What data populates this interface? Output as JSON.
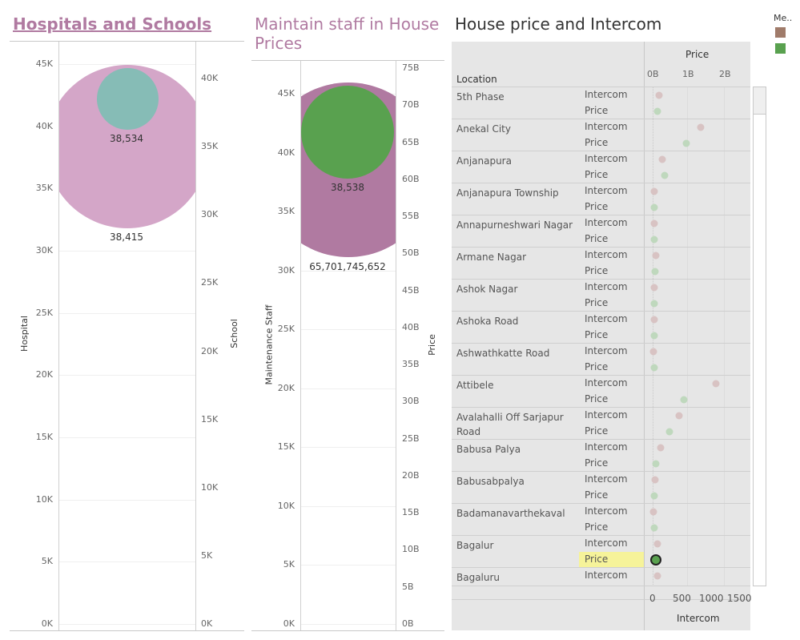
{
  "colors": {
    "pink": "#d4a6c8",
    "teal": "#86bcb6",
    "purple": "#b07aa1",
    "green": "#59a14f",
    "legend_brown": "#a07b6a",
    "dot_pink": "#d8c3c3",
    "dot_green": "#bfd8bd",
    "highlight": "#f6f39a"
  },
  "dashboard": {
    "title1": "Hospitals and Schools",
    "title2": "Maintain staff in House Prices",
    "title3": "House price and Intercom",
    "legend_title": "Me.."
  },
  "chart_data": [
    {
      "type": "bubble",
      "title": "Hospitals and Schools",
      "y_left_label": "Hospital",
      "y_left_ticks": [
        "45K",
        "40K",
        "35K",
        "30K",
        "25K",
        "20K",
        "15K",
        "10K",
        "5K",
        "0K"
      ],
      "y_right_label": "School",
      "y_right_ticks": [
        "40K",
        "35K",
        "30K",
        "25K",
        "20K",
        "15K",
        "10K",
        "5K",
        "0K"
      ],
      "series": [
        {
          "name": "Hospital",
          "value": 38415,
          "label": "38,415",
          "color": "#d4a6c8"
        },
        {
          "name": "School",
          "value": 38534,
          "label": "38,534",
          "color": "#86bcb6"
        }
      ]
    },
    {
      "type": "bubble",
      "title": "Maintain staff in House Prices",
      "y_left_label": "Maintenance Staff",
      "y_left_ticks": [
        "45K",
        "40K",
        "35K",
        "30K",
        "25K",
        "20K",
        "15K",
        "10K",
        "5K",
        "0K"
      ],
      "y_right_label": "Price",
      "y_right_ticks": [
        "75B",
        "70B",
        "65B",
        "60B",
        "55B",
        "50B",
        "45B",
        "40B",
        "35B",
        "30B",
        "25B",
        "20B",
        "15B",
        "10B",
        "5B",
        "0B"
      ],
      "series": [
        {
          "name": "Price",
          "value": 65701745652,
          "label": "65,701,745,652",
          "color": "#b07aa1"
        },
        {
          "name": "Maintenance Staff",
          "value": 38538,
          "label": "38,538",
          "color": "#59a14f"
        }
      ]
    },
    {
      "type": "scatter",
      "title": "House price and Intercom",
      "row_header": "Location",
      "top_axis_title": "Price",
      "top_axis_ticks": [
        "0B",
        "1B",
        "2B"
      ],
      "bottom_axis_title": "Intercom",
      "bottom_axis_ticks": [
        "0",
        "500",
        "1000",
        "1500"
      ],
      "measure_names": [
        "Intercom",
        "Price"
      ],
      "rows": [
        {
          "location": "5th Phase",
          "intercom": 100,
          "price": 0.12
        },
        {
          "location": "Anekal City",
          "intercom": 830,
          "price": 0.9
        },
        {
          "location": "Anjanapura",
          "intercom": 150,
          "price": 0.32
        },
        {
          "location": "Anjanapura Township",
          "intercom": 20,
          "price": 0.02
        },
        {
          "location": "Annapurneshwari Nagar",
          "intercom": 20,
          "price": 0.02
        },
        {
          "location": "Armane Nagar",
          "intercom": 40,
          "price": 0.04
        },
        {
          "location": "Ashok Nagar",
          "intercom": 20,
          "price": 0.02
        },
        {
          "location": "Ashoka Road",
          "intercom": 10,
          "price": 0.02
        },
        {
          "location": "Ashwathkatte Road",
          "intercom": 5,
          "price": 0.02
        },
        {
          "location": "Attibele",
          "intercom": 1100,
          "price": 0.85
        },
        {
          "location": "Avalahalli Off Sarjapur Road",
          "intercom": 450,
          "price": 0.45
        },
        {
          "location": "Babusa Palya",
          "intercom": 130,
          "price": 0.07
        },
        {
          "location": "Babusabpalya",
          "intercom": 30,
          "price": 0.03
        },
        {
          "location": "Badamanavarthekaval",
          "intercom": 5,
          "price": 0.02
        },
        {
          "location": "Bagalur",
          "intercom": 70,
          "price": 0.06,
          "selected_measure": "Price"
        },
        {
          "location": "Bagaluru",
          "intercom": 70,
          "price": null
        }
      ]
    }
  ]
}
